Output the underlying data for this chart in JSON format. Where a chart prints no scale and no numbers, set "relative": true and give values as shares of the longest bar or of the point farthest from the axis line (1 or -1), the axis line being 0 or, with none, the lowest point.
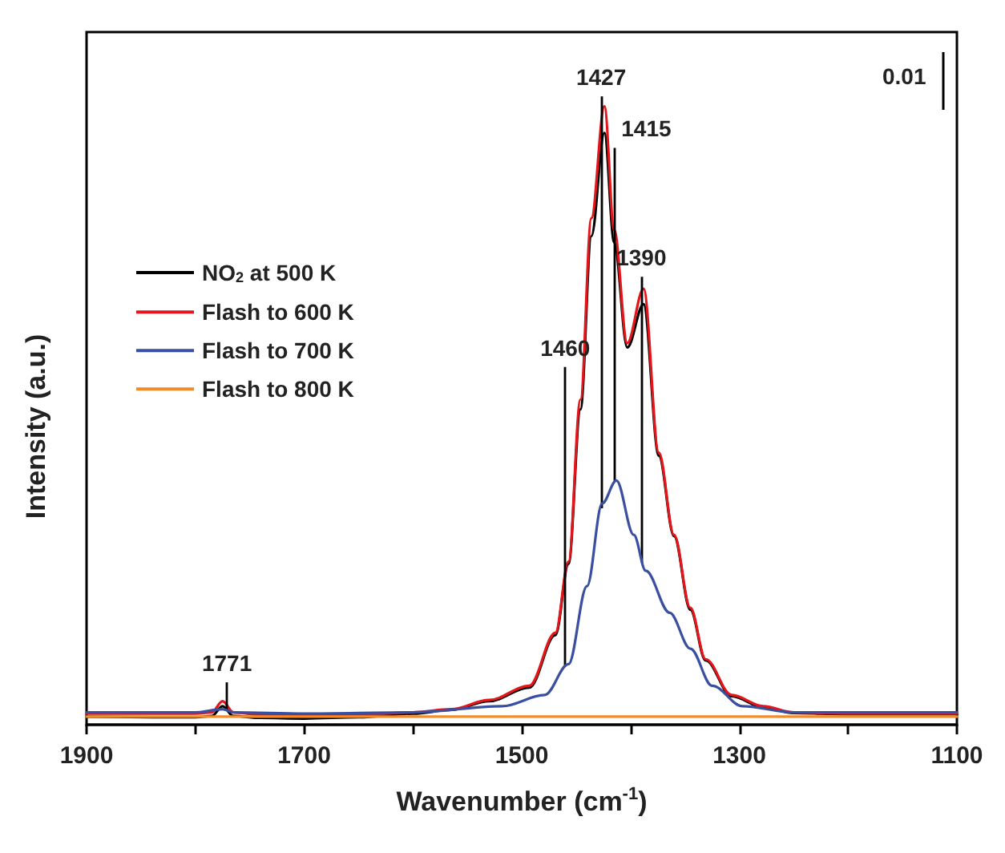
{
  "chart_data": {
    "type": "line",
    "relative": true,
    "xlabel": "Wavenumber (cm$^{-1}$)",
    "ylabel": "Intensity (a.u.)",
    "xlim": [
      1900,
      1100
    ],
    "xticks": [
      1900,
      {
        "value": 1800,
        "label": null
      },
      1700,
      {
        "value": 1600,
        "label": null
      },
      1500,
      {
        "value": 1400,
        "label": null
      },
      1300,
      {
        "value": 1200,
        "label": null
      },
      1100
    ],
    "legend": "top left",
    "grid": false,
    "marker": "none",
    "line_style": "solid",
    "series": [
      {
        "name": "NO$_{2}$ at 500 K",
        "color": "#000000",
        "x": [
          1900,
          1800,
          1785,
          1775,
          1765,
          1740,
          1700,
          1650,
          1600,
          1565,
          1530,
          1493,
          1469,
          1457,
          1446,
          1436,
          1424,
          1415,
          1403,
          1388,
          1374,
          1360,
          1345,
          1331,
          1307,
          1278,
          1250,
          1200,
          1100
        ],
        "values": [
          0.013,
          0.012,
          0.014,
          0.03,
          0.014,
          0.011,
          0.01,
          0.012,
          0.018,
          0.024,
          0.038,
          0.06,
          0.145,
          0.26,
          0.51,
          0.79,
          0.957,
          0.78,
          0.61,
          0.68,
          0.435,
          0.305,
          0.186,
          0.104,
          0.046,
          0.028,
          0.019,
          0.017,
          0.017
        ]
      },
      {
        "name": "Flash to 600 K",
        "color": "#e3171b",
        "x": [
          1900,
          1800,
          1785,
          1775,
          1765,
          1740,
          1700,
          1650,
          1600,
          1565,
          1530,
          1493,
          1469,
          1457,
          1446,
          1436,
          1424,
          1415,
          1403,
          1388,
          1374,
          1360,
          1345,
          1331,
          1307,
          1278,
          1250,
          1200,
          1100
        ],
        "values": [
          0.018,
          0.018,
          0.02,
          0.038,
          0.02,
          0.016,
          0.016,
          0.016,
          0.02,
          0.025,
          0.04,
          0.063,
          0.149,
          0.264,
          0.526,
          0.819,
          1.0,
          0.8,
          0.617,
          0.705,
          0.44,
          0.307,
          0.189,
          0.106,
          0.048,
          0.03,
          0.02,
          0.018,
          0.018
        ]
      },
      {
        "name": "Flash to 700 K",
        "color": "#3a4fa0",
        "x": [
          1900,
          1800,
          1775,
          1765,
          1700,
          1600,
          1518,
          1479,
          1457,
          1440,
          1426,
          1413,
          1397,
          1386,
          1364,
          1345,
          1325,
          1297,
          1250,
          1100
        ],
        "values": [
          0.02,
          0.02,
          0.025,
          0.02,
          0.018,
          0.02,
          0.03,
          0.048,
          0.098,
          0.224,
          0.358,
          0.395,
          0.307,
          0.249,
          0.181,
          0.123,
          0.063,
          0.03,
          0.02,
          0.02
        ]
      },
      {
        "name": "Flash to 800 K",
        "color": "#f28c28",
        "x": [
          1900,
          1100
        ],
        "values": [
          0.013,
          0.013
        ]
      }
    ],
    "annotations": [
      {
        "text": "1427",
        "x": 1427,
        "y": 0.35
      },
      {
        "text": "1415",
        "x": 1415,
        "y": 0.393
      },
      {
        "text": "1390",
        "x": 1390,
        "y": 0.262
      },
      {
        "text": "1460",
        "x": 1460,
        "y": 0.095
      },
      {
        "text": "1771",
        "x": 1771,
        "y": 0.022
      },
      "0.01"
    ]
  }
}
